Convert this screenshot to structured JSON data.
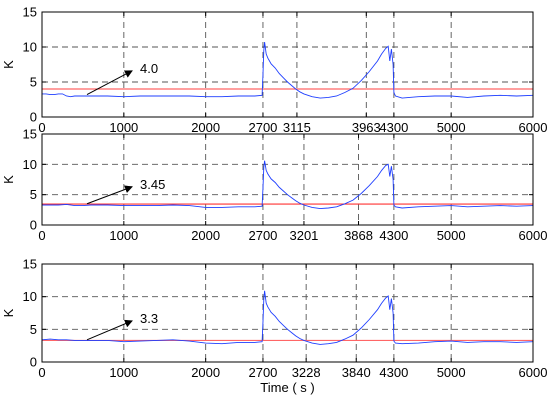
{
  "chart_data": [
    {
      "type": "line",
      "ylabel": "K",
      "xlim": [
        0,
        6000
      ],
      "ylim": [
        0,
        15
      ],
      "grid": false,
      "y_ticks": [
        0,
        5,
        10,
        15
      ],
      "x_ticks": [
        0,
        1000,
        2000,
        2700,
        3115,
        3963,
        4300,
        5000,
        6000
      ],
      "x_tick_labels": [
        "0",
        "1000",
        "2000",
        "2700",
        "3115",
        "3963",
        "4300",
        "5000",
        "6000"
      ],
      "vertical_dashed_lines": [
        1000,
        2000,
        2700,
        3115,
        3963,
        4300,
        5000
      ],
      "horizontal_dashed_lines": [
        5,
        10
      ],
      "threshold": {
        "value": 4.0,
        "color": "#ff6666"
      },
      "annotation": {
        "text": "4.0",
        "arrow_from": [
          550,
          3.2
        ],
        "arrow_to": [
          1100,
          6.6
        ]
      },
      "series": [
        {
          "color": "#1f3fff",
          "x": [
            0,
            50,
            100,
            150,
            200,
            250,
            300,
            350,
            400,
            500,
            600,
            800,
            1000,
            1200,
            1400,
            1600,
            1800,
            2000,
            2200,
            2400,
            2600,
            2690,
            2700,
            2710,
            2720,
            2740,
            2760,
            2780,
            2800,
            2850,
            2900,
            2950,
            3000,
            3050,
            3100,
            3150,
            3200,
            3300,
            3400,
            3500,
            3600,
            3700,
            3800,
            3900,
            4000,
            4100,
            4150,
            4200,
            4230,
            4250,
            4270,
            4290,
            4300,
            4320,
            4400,
            4600,
            4800,
            5000,
            5200,
            5400,
            5600,
            5800,
            6000
          ],
          "y": [
            3.3,
            3.3,
            3.2,
            3.2,
            3.3,
            3.3,
            3.0,
            2.9,
            3.0,
            3.0,
            3.0,
            3.0,
            2.9,
            3.0,
            3.0,
            3.0,
            3.0,
            2.9,
            2.9,
            3.0,
            3.0,
            3.1,
            6.2,
            9.5,
            10.7,
            9.0,
            8.4,
            8.0,
            7.6,
            7.0,
            6.2,
            5.6,
            5.0,
            4.5,
            4.0,
            3.6,
            3.3,
            2.9,
            2.7,
            2.8,
            3.0,
            3.5,
            4.1,
            5.2,
            6.5,
            8.0,
            9.0,
            9.8,
            10.1,
            8.0,
            9.7,
            7.5,
            3.5,
            3.0,
            2.7,
            2.9,
            3.0,
            3.0,
            2.8,
            3.0,
            3.1,
            3.0,
            3.1
          ]
        }
      ]
    },
    {
      "type": "line",
      "ylabel": "K",
      "xlim": [
        0,
        6000
      ],
      "ylim": [
        0,
        15
      ],
      "grid": false,
      "y_ticks": [
        0,
        5,
        10,
        15
      ],
      "x_ticks": [
        0,
        1000,
        2000,
        2700,
        3201,
        3868,
        4300,
        5000,
        6000
      ],
      "x_tick_labels": [
        "0",
        "1000",
        "2000",
        "2700",
        "3201",
        "3868",
        "4300",
        "5000",
        "6000"
      ],
      "vertical_dashed_lines": [
        1000,
        2000,
        2700,
        3201,
        3868,
        4300,
        5000
      ],
      "horizontal_dashed_lines": [
        5,
        10
      ],
      "threshold": {
        "value": 3.45,
        "color": "#ff3333"
      },
      "annotation": {
        "text": "3.45",
        "arrow_from": [
          550,
          3.5
        ],
        "arrow_to": [
          1100,
          6.3
        ]
      },
      "series": [
        {
          "color": "#1f3fff",
          "x": [
            0,
            100,
            200,
            300,
            400,
            500,
            600,
            800,
            1000,
            1200,
            1400,
            1600,
            1800,
            2000,
            2200,
            2400,
            2600,
            2690,
            2700,
            2710,
            2720,
            2740,
            2760,
            2780,
            2800,
            2850,
            2900,
            2950,
            3000,
            3050,
            3100,
            3150,
            3200,
            3300,
            3400,
            3500,
            3600,
            3700,
            3800,
            3900,
            4000,
            4100,
            4150,
            4200,
            4230,
            4250,
            4270,
            4290,
            4300,
            4320,
            4400,
            4600,
            4800,
            5000,
            5200,
            5400,
            5600,
            5800,
            6000
          ],
          "y": [
            3.3,
            3.3,
            3.3,
            3.4,
            3.2,
            3.2,
            3.3,
            3.3,
            3.2,
            3.2,
            3.2,
            3.3,
            3.2,
            2.9,
            2.9,
            3.0,
            3.0,
            3.1,
            6.2,
            9.5,
            10.6,
            9.0,
            8.4,
            8.0,
            7.6,
            7.0,
            6.2,
            5.6,
            5.0,
            4.5,
            4.0,
            3.6,
            3.3,
            2.9,
            2.7,
            2.8,
            3.0,
            3.5,
            4.1,
            5.2,
            6.5,
            8.0,
            9.0,
            9.8,
            10.0,
            8.0,
            9.7,
            7.5,
            3.3,
            3.0,
            2.8,
            3.0,
            3.1,
            3.2,
            3.0,
            3.1,
            3.2,
            3.1,
            3.2
          ]
        }
      ]
    },
    {
      "type": "line",
      "ylabel": "K",
      "xlabel": "Time ( s )",
      "xlim": [
        0,
        6000
      ],
      "ylim": [
        0,
        15
      ],
      "grid": false,
      "y_ticks": [
        0,
        5,
        10,
        15
      ],
      "x_ticks": [
        0,
        1000,
        2000,
        2700,
        3228,
        3840,
        4300,
        5000,
        6000
      ],
      "x_tick_labels": [
        "0",
        "1000",
        "2000",
        "2700",
        "3228",
        "3840",
        "4300",
        "5000",
        "6000"
      ],
      "vertical_dashed_lines": [
        1000,
        2000,
        2700,
        3228,
        3840,
        4300,
        5000
      ],
      "horizontal_dashed_lines": [
        5,
        10
      ],
      "threshold": {
        "value": 3.3,
        "color": "#ff6666"
      },
      "annotation": {
        "text": "3.3",
        "arrow_from": [
          550,
          3.4
        ],
        "arrow_to": [
          1100,
          6.3
        ]
      },
      "series": [
        {
          "color": "#1f3fff",
          "x": [
            0,
            100,
            200,
            300,
            400,
            500,
            600,
            800,
            1000,
            1200,
            1400,
            1600,
            1800,
            2000,
            2200,
            2400,
            2600,
            2690,
            2700,
            2710,
            2720,
            2740,
            2760,
            2780,
            2800,
            2850,
            2900,
            2950,
            3000,
            3050,
            3100,
            3150,
            3200,
            3300,
            3400,
            3500,
            3600,
            3700,
            3800,
            3900,
            4000,
            4100,
            4150,
            4200,
            4230,
            4250,
            4270,
            4290,
            4300,
            4320,
            4400,
            4600,
            4800,
            5000,
            5200,
            5400,
            5600,
            5800,
            6000
          ],
          "y": [
            3.4,
            3.5,
            3.4,
            3.4,
            3.3,
            3.3,
            3.3,
            3.3,
            3.1,
            3.2,
            3.3,
            3.4,
            3.2,
            2.9,
            2.8,
            3.0,
            3.0,
            3.1,
            6.2,
            9.6,
            10.9,
            9.0,
            8.4,
            8.0,
            7.6,
            7.0,
            6.2,
            5.6,
            5.0,
            4.5,
            4.0,
            3.6,
            3.3,
            2.9,
            2.7,
            2.8,
            3.0,
            3.5,
            4.1,
            5.2,
            6.5,
            8.0,
            9.0,
            9.8,
            10.1,
            8.0,
            9.7,
            7.5,
            3.2,
            2.9,
            2.8,
            2.9,
            3.1,
            3.2,
            3.0,
            3.1,
            3.1,
            3.0,
            3.1
          ]
        }
      ]
    }
  ]
}
